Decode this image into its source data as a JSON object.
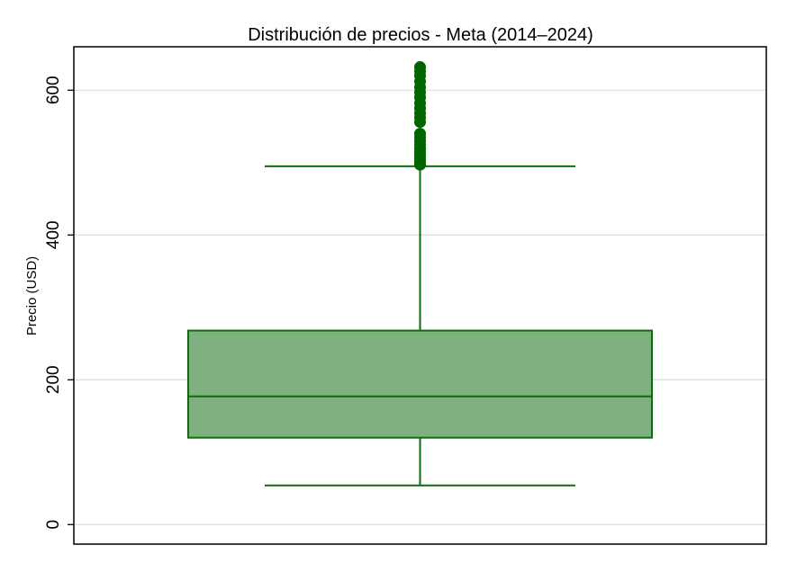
{
  "chart_data": {
    "type": "box",
    "title": "Distribución de precios - Meta (2014–2024)",
    "xlabel": "",
    "ylabel": "Precio (USD)",
    "ylim": [
      -27,
      660
    ],
    "yticks": [
      0,
      200,
      400,
      600
    ],
    "grid": true,
    "box": {
      "whisker_low": 54,
      "q1": 120,
      "median": 177,
      "q3": 268,
      "whisker_high": 495,
      "outliers": [
        497,
        500,
        504,
        508,
        512,
        516,
        520,
        525,
        530,
        535,
        540,
        556,
        562,
        568,
        575,
        582,
        590,
        597,
        604,
        612,
        620,
        626,
        632
      ]
    },
    "colors": {
      "box_fill": "#7fb07f",
      "line": "#0f6b0f",
      "outlier": "#006400",
      "grid": "#dcdcdc"
    }
  }
}
